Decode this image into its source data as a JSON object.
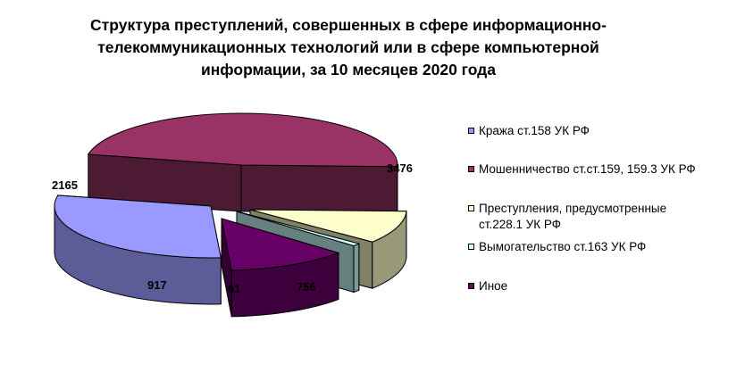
{
  "title_lines": [
    "Структура преступлений, совершенных в сфере информационно-",
    "телекоммуникационных технологий или в сфере компьютерной",
    "информации, за 10 месяцев 2020 года"
  ],
  "chart_data": {
    "type": "pie",
    "three_d": true,
    "exploded": true,
    "legend_position": "right",
    "slices": [
      {
        "label": "Кража ст.158 УК РФ",
        "value": 2165,
        "data_label": "2165",
        "color": "#9999ff"
      },
      {
        "label": "Мошенничество ст.ст.159, 159.3 УК РФ",
        "value": 3476,
        "data_label": "3476",
        "color": "#993366"
      },
      {
        "label": "Преступления, предусмотренные ст.228.1 УК РФ",
        "value": 756,
        "data_label": "756",
        "color": "#ffffcc"
      },
      {
        "label": "Вымогательство ст.163 УК РФ",
        "value": 61,
        "data_label": "61",
        "color": "#ccffff"
      },
      {
        "label": "Иное",
        "value": 917,
        "data_label": "917",
        "color": "#660066"
      }
    ]
  }
}
